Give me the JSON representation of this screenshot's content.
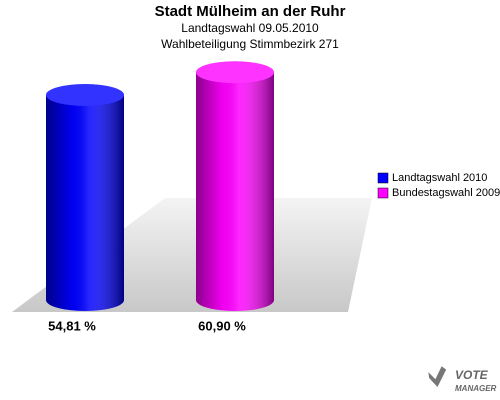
{
  "chart_data": {
    "type": "bar",
    "title": "Stadt Mülheim an der Ruhr",
    "subtitle": [
      "Landtagswahl 09.05.2010",
      "Wahlbeteiligung Stimmbezirk 271"
    ],
    "series": [
      {
        "name": "Landtagswahl 2010",
        "color": "#0000ff",
        "values": [
          54.81
        ],
        "value_labels": [
          "54,81 %"
        ]
      },
      {
        "name": "Bundestagswahl 2009",
        "color": "#ff00ff",
        "values": [
          60.9
        ],
        "value_labels": [
          "60,90 %"
        ]
      }
    ],
    "legend": "right",
    "watermark": [
      "VOTE",
      "MANAGER"
    ]
  }
}
